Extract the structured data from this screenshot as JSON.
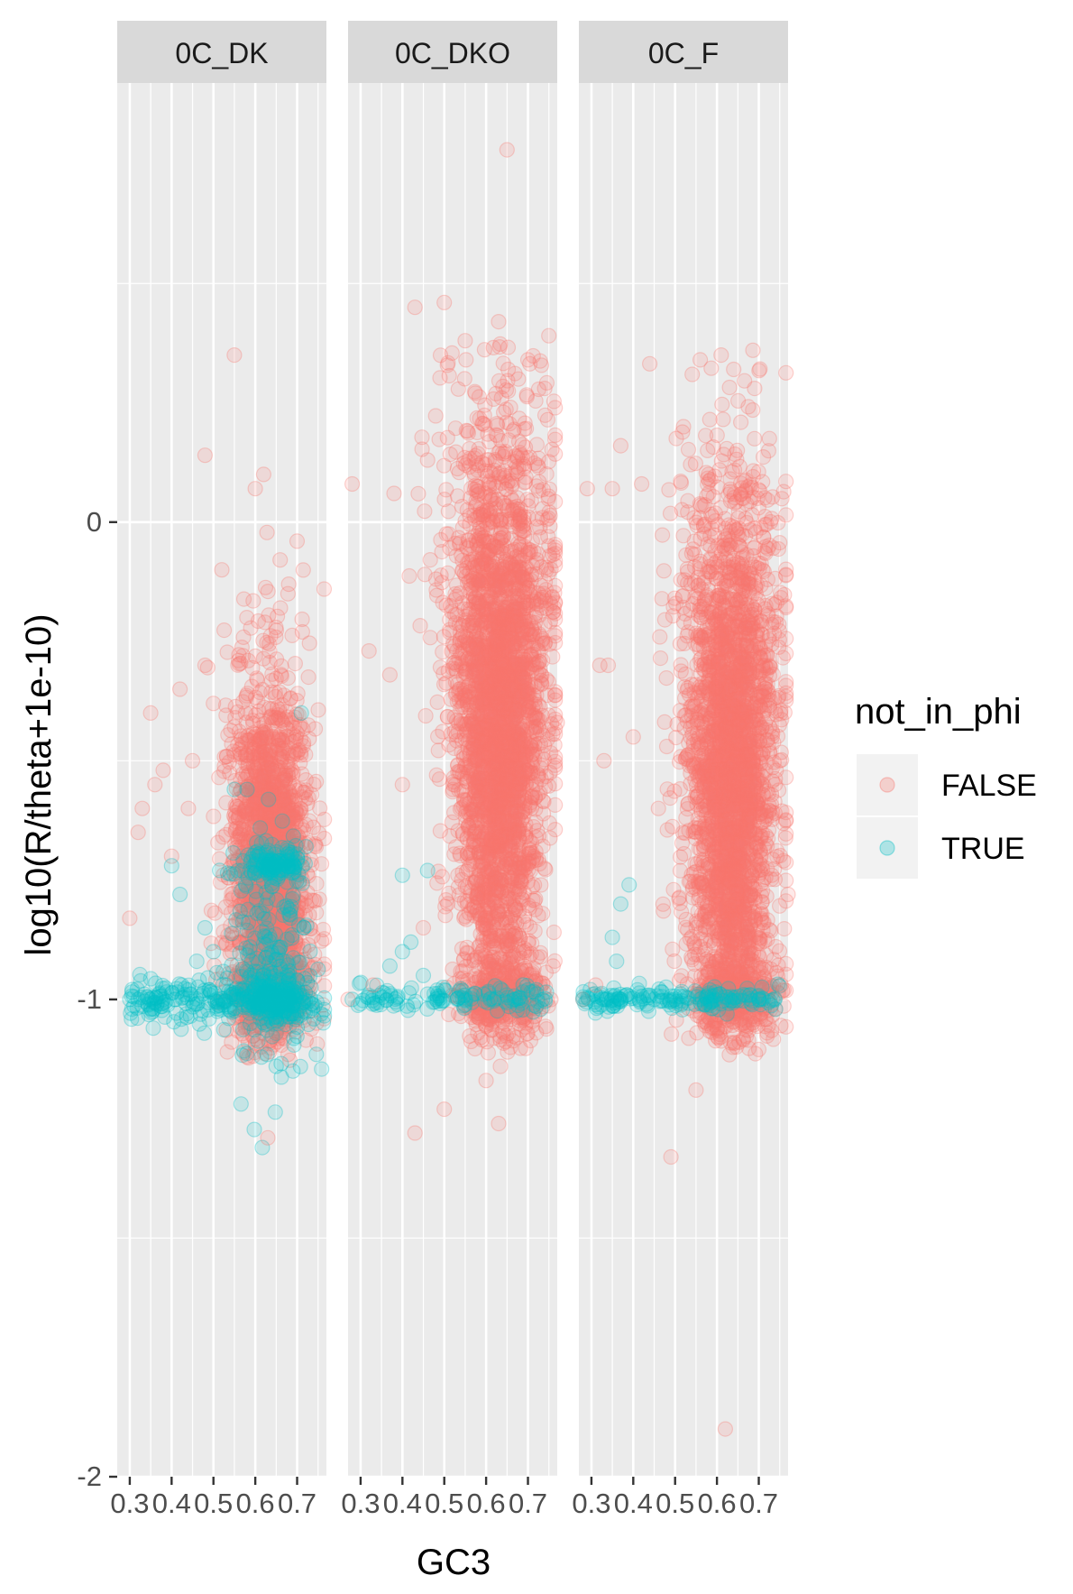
{
  "chart_data": {
    "type": "scatter",
    "title": "",
    "xlabel": "GC3",
    "ylabel": "log10(R/theta+1e-10)",
    "facets": [
      "0C_DK",
      "0C_DKO",
      "0C_F"
    ],
    "x_ticks": [
      "0.3",
      "0.4",
      "0.5",
      "0.6",
      "0.7"
    ],
    "y_ticks": [
      "-2",
      "-1",
      "0"
    ],
    "xlim": [
      0.27,
      0.77
    ],
    "ylim": [
      -2.0,
      0.92
    ],
    "grid": true,
    "legend": {
      "title": "not_in_phi",
      "position": "right",
      "entries": [
        {
          "label": "FALSE",
          "color": "#F8766D"
        },
        {
          "label": "TRUE",
          "color": "#00BFC4"
        }
      ]
    },
    "series": [
      {
        "name": "FALSE",
        "color": "#F8766D"
      },
      {
        "name": "TRUE",
        "color": "#00BFC4"
      }
    ],
    "panels": [
      {
        "facet": "0C_DK",
        "FALSE": [
          [
            0.55,
            0.35
          ],
          [
            0.48,
            0.14
          ],
          [
            0.62,
            0.1
          ],
          [
            0.6,
            0.07
          ],
          [
            0.52,
            -0.1
          ],
          [
            0.58,
            -0.2
          ],
          [
            0.66,
            -0.18
          ],
          [
            0.7,
            -0.04
          ],
          [
            0.35,
            -0.4
          ],
          [
            0.36,
            -0.55
          ],
          [
            0.38,
            -0.52
          ],
          [
            0.42,
            -0.35
          ],
          [
            0.45,
            -0.5
          ],
          [
            0.48,
            -0.3
          ],
          [
            0.32,
            -0.65
          ],
          [
            0.4,
            -0.7
          ],
          [
            0.44,
            -0.6
          ],
          [
            0.63,
            -1.29
          ],
          [
            0.58,
            -1.12
          ],
          [
            0.65,
            -1.07
          ],
          [
            0.72,
            -0.58
          ],
          [
            0.3,
            -0.83
          ],
          [
            0.33,
            -0.6
          ],
          [
            0.5,
            -0.38
          ],
          [
            0.56,
            -0.29
          ],
          [
            0.68,
            -0.13
          ]
        ],
        "TRUE": [
          [
            0.3,
            -1.0
          ],
          [
            0.32,
            -1.0
          ],
          [
            0.35,
            -1.0
          ],
          [
            0.38,
            -1.0
          ],
          [
            0.41,
            -1.0
          ],
          [
            0.44,
            -0.98
          ],
          [
            0.46,
            -1.01
          ],
          [
            0.4,
            -0.72
          ],
          [
            0.42,
            -0.78
          ],
          [
            0.46,
            -0.92
          ],
          [
            0.48,
            -0.85
          ],
          [
            0.5,
            -0.9
          ],
          [
            0.55,
            -0.56
          ],
          [
            0.65,
            -1.14
          ],
          [
            0.69,
            -1.15
          ],
          [
            0.71,
            -0.4
          ]
        ]
      },
      {
        "facet": "0C_DKO",
        "FALSE": [
          [
            0.65,
            0.78
          ],
          [
            0.43,
            0.45
          ],
          [
            0.5,
            0.46
          ],
          [
            0.63,
            0.42
          ],
          [
            0.7,
            0.34
          ],
          [
            0.55,
            0.38
          ],
          [
            0.74,
            0.28
          ],
          [
            0.28,
            0.08
          ],
          [
            0.38,
            0.06
          ],
          [
            0.46,
            0.13
          ],
          [
            0.75,
            -0.05
          ],
          [
            0.32,
            -0.27
          ],
          [
            0.37,
            -0.32
          ],
          [
            0.4,
            -0.55
          ],
          [
            0.45,
            -0.85
          ],
          [
            0.5,
            -1.23
          ],
          [
            0.43,
            -1.28
          ],
          [
            0.6,
            -1.17
          ],
          [
            0.63,
            -1.26
          ],
          [
            0.72,
            -1.07
          ],
          [
            0.27,
            -1.0
          ],
          [
            0.33,
            -0.97
          ],
          [
            0.76,
            -0.93
          ],
          [
            0.77,
            -0.42
          ]
        ],
        "TRUE": [
          [
            0.28,
            -1.0
          ],
          [
            0.37,
            -0.93
          ],
          [
            0.4,
            -0.9
          ],
          [
            0.42,
            -0.88
          ],
          [
            0.45,
            -0.95
          ],
          [
            0.5,
            -0.98
          ],
          [
            0.55,
            -1.0
          ],
          [
            0.62,
            -1.0
          ],
          [
            0.7,
            -0.98
          ],
          [
            0.4,
            -0.74
          ],
          [
            0.46,
            -0.73
          ]
        ]
      },
      {
        "facet": "0C_F",
        "FALSE": [
          [
            0.61,
            0.35
          ],
          [
            0.64,
            0.32
          ],
          [
            0.56,
            0.34
          ],
          [
            0.69,
            0.28
          ],
          [
            0.52,
            0.2
          ],
          [
            0.37,
            0.16
          ],
          [
            0.42,
            0.08
          ],
          [
            0.35,
            0.07
          ],
          [
            0.29,
            0.07
          ],
          [
            0.58,
            0.1
          ],
          [
            0.66,
            0.05
          ],
          [
            0.34,
            -0.3
          ],
          [
            0.33,
            -0.5
          ],
          [
            0.4,
            -0.45
          ],
          [
            0.46,
            -0.6
          ],
          [
            0.32,
            -0.3
          ],
          [
            0.75,
            -0.5
          ],
          [
            0.49,
            -1.33
          ],
          [
            0.55,
            -1.19
          ],
          [
            0.62,
            -1.9
          ],
          [
            0.72,
            -1.07
          ],
          [
            0.28,
            -1.0
          ],
          [
            0.31,
            -0.97
          ],
          [
            0.76,
            -0.98
          ],
          [
            0.77,
            -0.78
          ]
        ],
        "TRUE": [
          [
            0.28,
            -1.0
          ],
          [
            0.33,
            -1.0
          ],
          [
            0.37,
            -1.0
          ],
          [
            0.41,
            -0.98
          ],
          [
            0.45,
            -1.0
          ],
          [
            0.5,
            -1.0
          ],
          [
            0.56,
            -1.0
          ],
          [
            0.63,
            -1.0
          ],
          [
            0.7,
            -1.0
          ],
          [
            0.39,
            -0.76
          ],
          [
            0.37,
            -0.8
          ],
          [
            0.35,
            -0.87
          ],
          [
            0.36,
            -0.92
          ]
        ]
      }
    ]
  }
}
